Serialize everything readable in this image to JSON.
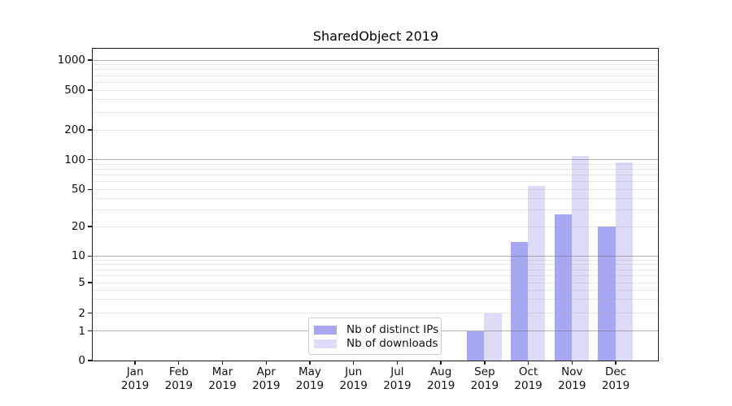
{
  "title": "SharedObject 2019",
  "chart_data": {
    "type": "bar",
    "title": "SharedObject 2019",
    "categories": [
      "Jan",
      "Feb",
      "Mar",
      "Apr",
      "May",
      "Jun",
      "Jul",
      "Aug",
      "Sep",
      "Oct",
      "Nov",
      "Dec"
    ],
    "year": "2019",
    "series": [
      {
        "name": "Nb of distinct IPs",
        "color": "#a7a7f2",
        "values": [
          0,
          0,
          0,
          0,
          0,
          0,
          0,
          0,
          1,
          14,
          27,
          20
        ]
      },
      {
        "name": "Nb of downloads",
        "color": "#dcdcf9",
        "values": [
          0,
          0,
          0,
          0,
          0,
          0,
          0,
          0,
          2,
          54,
          108,
          93
        ]
      }
    ],
    "yscale": "symlog",
    "yticks": [
      1000,
      500,
      200,
      100,
      50,
      20,
      10,
      5,
      2,
      1,
      0
    ],
    "ylim": [
      0,
      1300
    ],
    "grid": true,
    "legend_position": "lower center"
  }
}
